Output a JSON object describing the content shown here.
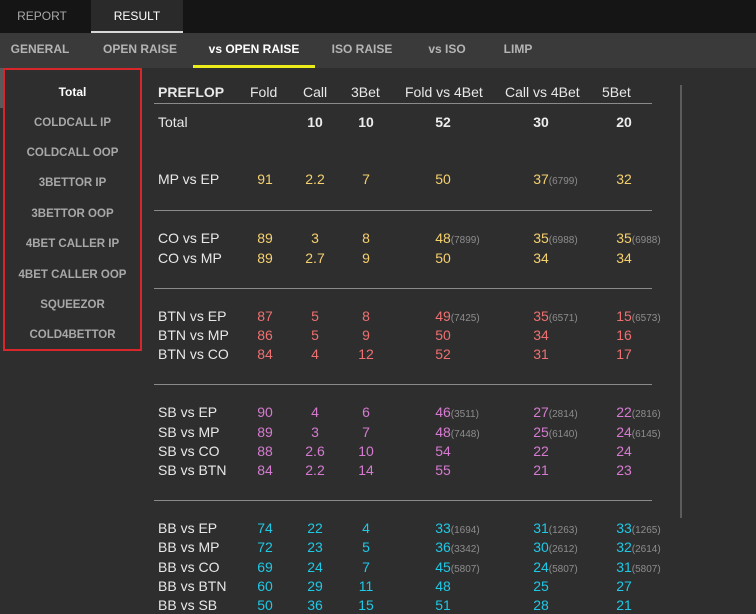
{
  "top_tabs": [
    {
      "label": "REPORT",
      "active": false
    },
    {
      "label": "RESULT",
      "active": true
    }
  ],
  "sub_tabs": [
    {
      "label": "GENERAL",
      "active": false
    },
    {
      "label": "OPEN RAISE",
      "active": false
    },
    {
      "label": "vs OPEN RAISE",
      "active": true
    },
    {
      "label": "ISO RAISE",
      "active": false
    },
    {
      "label": "vs ISO",
      "active": false
    },
    {
      "label": "LIMP",
      "active": false
    }
  ],
  "sidebar": {
    "items": [
      {
        "label": "Total",
        "active": true
      },
      {
        "label": "COLDCALL IP",
        "active": false
      },
      {
        "label": "COLDCALL OOP",
        "active": false
      },
      {
        "label": "3BETTOR IP",
        "active": false
      },
      {
        "label": "3BETTOR OOP",
        "active": false
      },
      {
        "label": "4BET CALLER IP",
        "active": false
      },
      {
        "label": "4BET CALLER OOP",
        "active": false
      },
      {
        "label": "SQUEEZOR",
        "active": false
      },
      {
        "label": "COLD4BETTOR",
        "active": false
      }
    ]
  },
  "table": {
    "headers": [
      "PREFLOP",
      "Fold",
      "Call",
      "3Bet",
      "Fold vs 4Bet",
      "Call vs 4Bet",
      "5Bet"
    ],
    "colors": {
      "white": "#ececec",
      "yellow": "#f5d06f",
      "red": "#ef7070",
      "purple": "#d67bd1",
      "cyan": "#1ec9e6"
    },
    "groups": [
      {
        "color": "white",
        "rows": [
          {
            "label": "Total",
            "cells": [
              {
                "v": ""
              },
              {
                "v": "10"
              },
              {
                "v": "10"
              },
              {
                "v": "52"
              },
              {
                "v": "30"
              },
              {
                "v": "20"
              }
            ]
          }
        ]
      },
      {
        "color": "yellow",
        "rows": [
          {
            "label": "MP vs EP",
            "cells": [
              {
                "v": "91"
              },
              {
                "v": "2.2"
              },
              {
                "v": "7"
              },
              {
                "v": "50"
              },
              {
                "v": "37",
                "sub": "(6799)"
              },
              {
                "v": "32"
              }
            ]
          }
        ]
      },
      {
        "color": "yellow",
        "rows": [
          {
            "label": "CO vs EP",
            "cells": [
              {
                "v": "89"
              },
              {
                "v": "3"
              },
              {
                "v": "8"
              },
              {
                "v": "48",
                "sub": "(7899)"
              },
              {
                "v": "35",
                "sub": "(6988)"
              },
              {
                "v": "35",
                "sub": "(6988)"
              }
            ]
          },
          {
            "label": "CO vs MP",
            "cells": [
              {
                "v": "89"
              },
              {
                "v": "2.7"
              },
              {
                "v": "9"
              },
              {
                "v": "50"
              },
              {
                "v": "34"
              },
              {
                "v": "34"
              }
            ]
          }
        ]
      },
      {
        "color": "red",
        "rows": [
          {
            "label": "BTN vs EP",
            "cells": [
              {
                "v": "87"
              },
              {
                "v": "5"
              },
              {
                "v": "8"
              },
              {
                "v": "49",
                "sub": "(7425)"
              },
              {
                "v": "35",
                "sub": "(6571)"
              },
              {
                "v": "15",
                "sub": "(6573)"
              }
            ]
          },
          {
            "label": "BTN vs MP",
            "cells": [
              {
                "v": "86"
              },
              {
                "v": "5"
              },
              {
                "v": "9"
              },
              {
                "v": "50"
              },
              {
                "v": "34"
              },
              {
                "v": "16"
              }
            ]
          },
          {
            "label": "BTN vs CO",
            "cells": [
              {
                "v": "84"
              },
              {
                "v": "4"
              },
              {
                "v": "12"
              },
              {
                "v": "52"
              },
              {
                "v": "31"
              },
              {
                "v": "17"
              }
            ]
          }
        ]
      },
      {
        "color": "purple",
        "rows": [
          {
            "label": "SB vs EP",
            "cells": [
              {
                "v": "90"
              },
              {
                "v": "4"
              },
              {
                "v": "6"
              },
              {
                "v": "46",
                "sub": "(3511)"
              },
              {
                "v": "27",
                "sub": "(2814)"
              },
              {
                "v": "22",
                "sub": "(2816)"
              }
            ]
          },
          {
            "label": "SB vs MP",
            "cells": [
              {
                "v": "89"
              },
              {
                "v": "3"
              },
              {
                "v": "7"
              },
              {
                "v": "48",
                "sub": "(7448)"
              },
              {
                "v": "25",
                "sub": "(6140)"
              },
              {
                "v": "24",
                "sub": "(6145)"
              }
            ]
          },
          {
            "label": "SB vs CO",
            "cells": [
              {
                "v": "88"
              },
              {
                "v": "2.6"
              },
              {
                "v": "10"
              },
              {
                "v": "54"
              },
              {
                "v": "22"
              },
              {
                "v": "24"
              }
            ]
          },
          {
            "label": "SB vs BTN",
            "cells": [
              {
                "v": "84"
              },
              {
                "v": "2.2"
              },
              {
                "v": "14"
              },
              {
                "v": "55"
              },
              {
                "v": "21"
              },
              {
                "v": "23"
              }
            ]
          }
        ]
      },
      {
        "color": "cyan",
        "rows": [
          {
            "label": "BB vs EP",
            "cells": [
              {
                "v": "74"
              },
              {
                "v": "22"
              },
              {
                "v": "4"
              },
              {
                "v": "33",
                "sub": "(1694)"
              },
              {
                "v": "31",
                "sub": "(1263)"
              },
              {
                "v": "33",
                "sub": "(1265)"
              }
            ]
          },
          {
            "label": "BB vs MP",
            "cells": [
              {
                "v": "72"
              },
              {
                "v": "23"
              },
              {
                "v": "5"
              },
              {
                "v": "36",
                "sub": "(3342)"
              },
              {
                "v": "30",
                "sub": "(2612)"
              },
              {
                "v": "32",
                "sub": "(2614)"
              }
            ]
          },
          {
            "label": "BB vs CO",
            "cells": [
              {
                "v": "69"
              },
              {
                "v": "24"
              },
              {
                "v": "7"
              },
              {
                "v": "45",
                "sub": "(5807)"
              },
              {
                "v": "24",
                "sub": "(5807)"
              },
              {
                "v": "31",
                "sub": "(5807)"
              }
            ]
          },
          {
            "label": "BB vs BTN",
            "cells": [
              {
                "v": "60"
              },
              {
                "v": "29"
              },
              {
                "v": "11"
              },
              {
                "v": "48"
              },
              {
                "v": "25"
              },
              {
                "v": "27"
              }
            ]
          },
          {
            "label": "BB vs SB",
            "cells": [
              {
                "v": "50"
              },
              {
                "v": "36"
              },
              {
                "v": "15"
              },
              {
                "v": "51"
              },
              {
                "v": "28"
              },
              {
                "v": "21"
              }
            ]
          }
        ]
      }
    ]
  }
}
